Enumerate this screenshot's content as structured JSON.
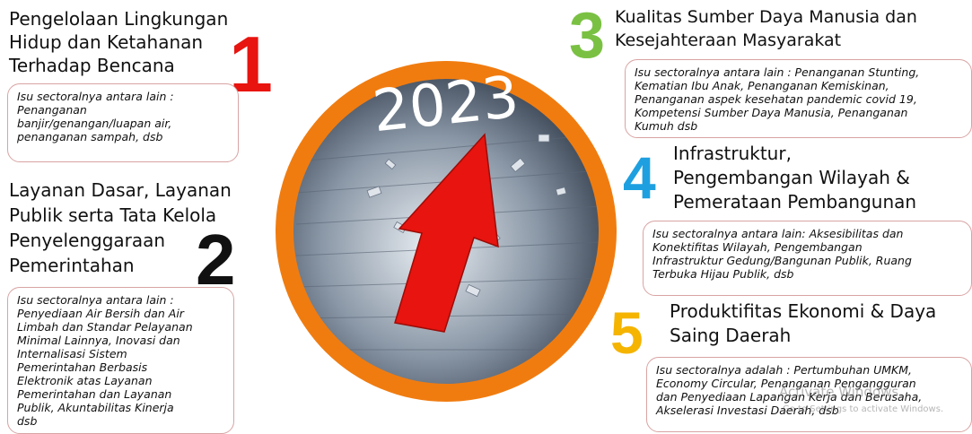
{
  "center_label": "2023",
  "items": [
    {
      "number": "1",
      "title": [
        "Pengelolaan Lingkungan",
        "Hidup dan Ketahanan",
        "Terhadap Bencana"
      ],
      "description": [
        "Isu sectoralnya antara lain :",
        "Penanganan",
        "banjir/genangan/luapan air,",
        "penanganan sampah, dsb"
      ]
    },
    {
      "number": "2",
      "title": [
        "Layanan Dasar, Layanan",
        "Publik serta Tata Kelola",
        "Penyelenggaraan",
        "Pemerintahan"
      ],
      "description": [
        "Isu sectoralnya antara lain :",
        "Penyediaan Air Bersih dan Air",
        "Limbah dan Standar Pelayanan",
        "Minimal Lainnya, Inovasi dan",
        "Internalisasi Sistem",
        "Pemerintahan Berbasis",
        "Elektronik atas Layanan",
        "Pemerintahan dan Layanan",
        "Publik, Akuntabilitas Kinerja",
        "dsb"
      ]
    },
    {
      "number": "3",
      "title": [
        "Kualitas Sumber Daya Manusia dan",
        "Kesejahteraan Masyarakat"
      ],
      "description": [
        "Isu sectoralnya antara lain : Penanganan Stunting,",
        "Kematian Ibu Anak, Penanganan Kemiskinan,",
        "Penanganan aspek kesehatan pandemic covid 19,",
        "Kompetensi Sumber Daya Manusia, Penanganan",
        "Kumuh dsb"
      ]
    },
    {
      "number": "4",
      "title": [
        "Infrastruktur,",
        "Pengembangan Wilayah &",
        "Pemerataan Pembangunan"
      ],
      "description": [
        "Isu sectoralnya antara lain: Aksesibilitas dan",
        "Konektifitas Wilayah, Pengembangan",
        "Infrastruktur Gedung/Bangunan Publik, Ruang",
        "Terbuka Hijau Publik, dsb"
      ]
    },
    {
      "number": "5",
      "title": [
        "Produktifitas Ekonomi & Daya",
        "Saing Daerah"
      ],
      "description": [
        "Isu sectoralnya adalah : Pertumbuhan UMKM,",
        "Economy Circular, Penanganan Pengangguran",
        "dan Penyediaan Lapangan Kerja dan Berusaha,",
        "Akselerasi Investasi Daerah, dsb"
      ]
    }
  ],
  "watermark": [
    "Activate Windows",
    "Go to Settings to activate Windows."
  ]
}
